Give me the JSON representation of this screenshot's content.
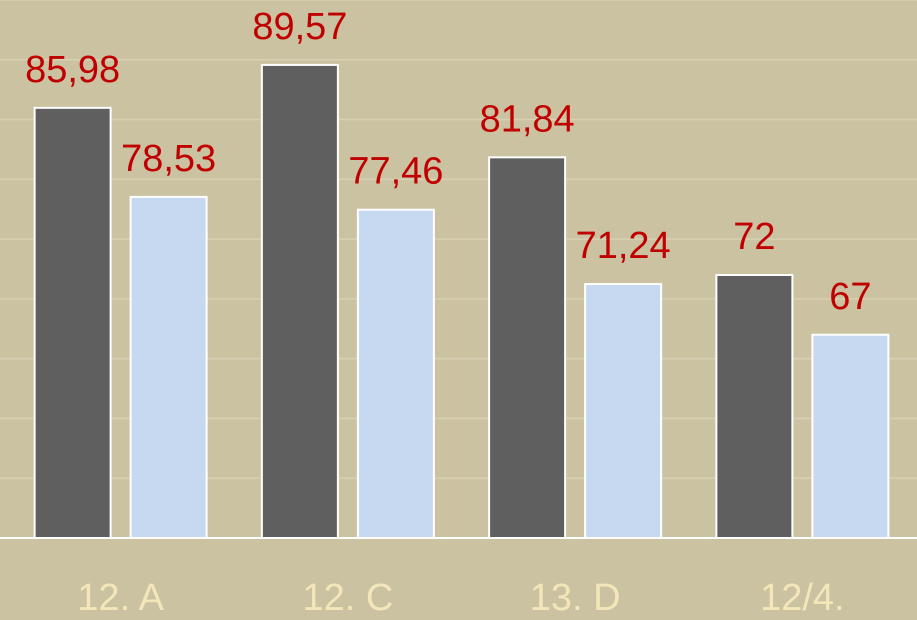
{
  "chart_data": {
    "type": "bar",
    "categories": [
      "12. A",
      "12. C",
      "13. D",
      "12/4."
    ],
    "series": [
      {
        "color": "#5f5f5f",
        "values": [
          85.98,
          89.57,
          81.84,
          72
        ],
        "value_labels": [
          "85,98",
          "89,57",
          "81,84",
          "72"
        ]
      },
      {
        "color": "#c6d9f1",
        "values": [
          78.53,
          77.46,
          71.24,
          67
        ],
        "value_labels": [
          "78,53",
          "77,46",
          "71,24",
          "67"
        ]
      }
    ],
    "ylim": [
      50,
      95
    ],
    "yticks": [
      50,
      55,
      60,
      65,
      70,
      75,
      80,
      85,
      90,
      95
    ],
    "grid": true
  }
}
